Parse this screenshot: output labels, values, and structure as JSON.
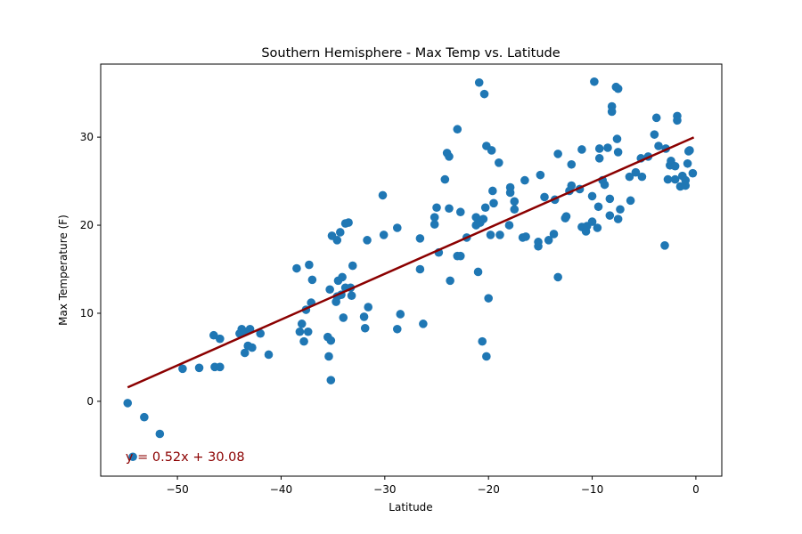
{
  "chart_data": {
    "type": "scatter",
    "title": "Southern Hemisphere - Max Temp vs. Latitude",
    "xlabel": "Latitude",
    "ylabel": "Max Temperature (F)",
    "xlim": [
      -57.4,
      2.5
    ],
    "ylim": [
      -8.5,
      38.3
    ],
    "x_ticks": [
      -50,
      -40,
      -30,
      -20,
      -10,
      0
    ],
    "y_ticks": [
      0,
      10,
      20,
      30
    ],
    "x_tick_labels": [
      "−50",
      "−40",
      "−30",
      "−20",
      "−10",
      "0"
    ],
    "y_tick_labels": [
      "0",
      "10",
      "20",
      "30"
    ],
    "grid": false,
    "point_color": "#1f77b4",
    "line_color": "#8b0000",
    "regression": {
      "slope": 0.52,
      "intercept": 30.08,
      "x_range": [
        -54.8,
        -0.2
      ],
      "equation": "y = 0.52x + 30.08",
      "equation_position": [
        -55.0,
        -6.3
      ]
    },
    "points": [
      [
        -54.8,
        -0.2
      ],
      [
        -54.3,
        -6.3
      ],
      [
        -53.2,
        -1.8
      ],
      [
        -51.7,
        -3.7
      ],
      [
        -49.5,
        3.7
      ],
      [
        -47.9,
        3.8
      ],
      [
        -46.5,
        7.5
      ],
      [
        -46.4,
        3.9
      ],
      [
        -45.9,
        7.1
      ],
      [
        -45.9,
        3.9
      ],
      [
        -44.0,
        7.7
      ],
      [
        -43.8,
        8.2
      ],
      [
        -43.5,
        7.9
      ],
      [
        -43.5,
        5.5
      ],
      [
        -43.2,
        6.3
      ],
      [
        -43.0,
        8.2
      ],
      [
        -42.8,
        6.1
      ],
      [
        -42.0,
        7.7
      ],
      [
        -41.2,
        5.3
      ],
      [
        -38.5,
        15.1
      ],
      [
        -38.2,
        7.9
      ],
      [
        -38.0,
        8.8
      ],
      [
        -37.8,
        6.8
      ],
      [
        -37.6,
        10.4
      ],
      [
        -37.4,
        7.9
      ],
      [
        -37.3,
        15.5
      ],
      [
        -37.1,
        11.2
      ],
      [
        -37.0,
        13.8
      ],
      [
        -35.5,
        7.3
      ],
      [
        -35.4,
        5.1
      ],
      [
        -35.3,
        12.7
      ],
      [
        -35.2,
        2.4
      ],
      [
        -35.2,
        6.9
      ],
      [
        -35.1,
        18.8
      ],
      [
        -34.7,
        11.3
      ],
      [
        -34.6,
        18.3
      ],
      [
        -34.6,
        11.9
      ],
      [
        -34.5,
        13.7
      ],
      [
        -34.3,
        19.2
      ],
      [
        -34.2,
        12.1
      ],
      [
        -34.1,
        14.1
      ],
      [
        -34.0,
        9.5
      ],
      [
        -33.8,
        20.2
      ],
      [
        -33.8,
        12.9
      ],
      [
        -33.5,
        20.3
      ],
      [
        -33.3,
        12.9
      ],
      [
        -33.2,
        12.0
      ],
      [
        -33.1,
        15.4
      ],
      [
        -32.0,
        9.6
      ],
      [
        -31.9,
        8.3
      ],
      [
        -31.7,
        18.3
      ],
      [
        -31.6,
        10.7
      ],
      [
        -30.2,
        23.4
      ],
      [
        -30.1,
        18.9
      ],
      [
        -28.8,
        19.7
      ],
      [
        -28.8,
        8.2
      ],
      [
        -28.5,
        9.9
      ],
      [
        -26.6,
        15.0
      ],
      [
        -26.6,
        18.5
      ],
      [
        -26.3,
        8.8
      ],
      [
        -25.2,
        20.1
      ],
      [
        -25.2,
        20.9
      ],
      [
        -25.0,
        22.0
      ],
      [
        -24.8,
        16.9
      ],
      [
        -24.2,
        25.2
      ],
      [
        -24.0,
        28.2
      ],
      [
        -23.8,
        27.8
      ],
      [
        -23.8,
        21.9
      ],
      [
        -23.7,
        13.7
      ],
      [
        -23.0,
        30.9
      ],
      [
        -23.0,
        16.5
      ],
      [
        -22.7,
        16.5
      ],
      [
        -22.7,
        21.5
      ],
      [
        -22.1,
        18.6
      ],
      [
        -21.2,
        20.9
      ],
      [
        -21.2,
        20.0
      ],
      [
        -21.0,
        14.7
      ],
      [
        -20.9,
        36.2
      ],
      [
        -20.8,
        20.3
      ],
      [
        -20.6,
        6.8
      ],
      [
        -20.5,
        20.7
      ],
      [
        -20.4,
        34.9
      ],
      [
        -20.3,
        22.0
      ],
      [
        -20.2,
        29.0
      ],
      [
        -20.2,
        5.1
      ],
      [
        -20.0,
        11.7
      ],
      [
        -19.8,
        18.9
      ],
      [
        -19.7,
        28.5
      ],
      [
        -19.6,
        23.9
      ],
      [
        -19.5,
        22.5
      ],
      [
        -19.0,
        27.1
      ],
      [
        -18.9,
        18.9
      ],
      [
        -18.0,
        20.0
      ],
      [
        -17.9,
        23.7
      ],
      [
        -17.9,
        24.3
      ],
      [
        -17.5,
        21.8
      ],
      [
        -17.5,
        22.7
      ],
      [
        -16.7,
        18.6
      ],
      [
        -16.5,
        25.1
      ],
      [
        -16.4,
        18.7
      ],
      [
        -15.2,
        17.6
      ],
      [
        -15.2,
        18.1
      ],
      [
        -15.0,
        25.7
      ],
      [
        -14.6,
        23.2
      ],
      [
        -14.2,
        18.3
      ],
      [
        -13.7,
        19.0
      ],
      [
        -13.6,
        22.9
      ],
      [
        -13.3,
        14.1
      ],
      [
        -13.3,
        28.1
      ],
      [
        -12.6,
        20.8
      ],
      [
        -12.5,
        21.0
      ],
      [
        -12.2,
        23.9
      ],
      [
        -12.0,
        26.9
      ],
      [
        -12.0,
        24.5
      ],
      [
        -11.2,
        24.1
      ],
      [
        -11.0,
        28.6
      ],
      [
        -11.0,
        19.8
      ],
      [
        -10.6,
        19.3
      ],
      [
        -10.5,
        19.9
      ],
      [
        -10.0,
        23.3
      ],
      [
        -10.0,
        20.4
      ],
      [
        -9.8,
        36.3
      ],
      [
        -9.5,
        19.7
      ],
      [
        -9.4,
        22.1
      ],
      [
        -9.3,
        27.6
      ],
      [
        -9.3,
        28.7
      ],
      [
        -9.0,
        25.1
      ],
      [
        -8.8,
        24.6
      ],
      [
        -8.5,
        28.8
      ],
      [
        -8.3,
        23.0
      ],
      [
        -8.3,
        21.1
      ],
      [
        -8.1,
        33.5
      ],
      [
        -8.1,
        32.9
      ],
      [
        -7.7,
        35.7
      ],
      [
        -7.5,
        35.5
      ],
      [
        -7.6,
        29.8
      ],
      [
        -7.5,
        28.3
      ],
      [
        -7.5,
        20.7
      ],
      [
        -7.3,
        21.8
      ],
      [
        -6.4,
        25.5
      ],
      [
        -6.3,
        22.8
      ],
      [
        -5.8,
        26.0
      ],
      [
        -5.3,
        27.6
      ],
      [
        -5.2,
        25.5
      ],
      [
        -4.6,
        27.8
      ],
      [
        -4.0,
        30.3
      ],
      [
        -3.8,
        32.2
      ],
      [
        -3.6,
        29.0
      ],
      [
        -3.0,
        17.7
      ],
      [
        -2.9,
        28.7
      ],
      [
        -2.7,
        25.2
      ],
      [
        -2.5,
        26.8
      ],
      [
        -2.4,
        27.3
      ],
      [
        -2.0,
        25.2
      ],
      [
        -2.0,
        26.7
      ],
      [
        -1.8,
        32.4
      ],
      [
        -1.8,
        31.9
      ],
      [
        -1.5,
        24.4
      ],
      [
        -1.3,
        25.6
      ],
      [
        -1.0,
        24.5
      ],
      [
        -1.0,
        25.1
      ],
      [
        -0.8,
        27.0
      ],
      [
        -0.7,
        28.4
      ],
      [
        -0.6,
        28.5
      ],
      [
        -0.3,
        25.9
      ]
    ]
  }
}
